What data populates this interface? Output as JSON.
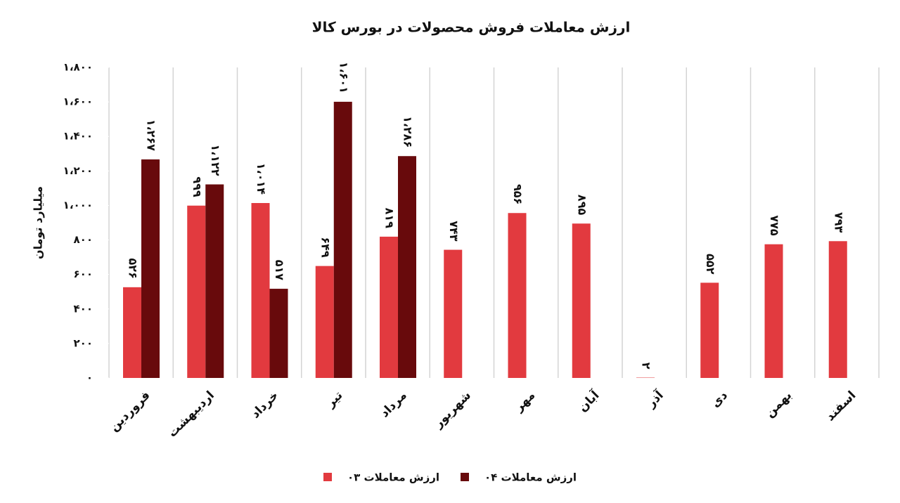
{
  "chart_data": {
    "type": "bar",
    "title": "ارزش معاملات فروش محصولات در بورس کالا",
    "y_label": "میلیارد تومان",
    "categories": [
      "فروردین",
      "اردیبهشت",
      "خرداد",
      "تیر",
      "مرداد",
      "شهریور",
      "مهر",
      "آبان",
      "آذر",
      "دی",
      "بهمن",
      "اسفند"
    ],
    "series": [
      {
        "name": "ارزش معاملات ۰۳",
        "color": "#e23a3f",
        "values": [
          526,
          999,
          1014,
          649,
          819,
          743,
          956,
          895,
          2,
          552,
          775,
          793
        ],
        "value_labels": [
          "۵۲۶",
          "۹۹۹",
          "۱،۰۱۴",
          "۶۴۹",
          "۸۱۹",
          "۷۴۳",
          "۹۵۶",
          "۸۹۵",
          "۲",
          "۵۵۲",
          "۷۷۵",
          "۷۹۳"
        ]
      },
      {
        "name": "ارزش معاملات ۰۴",
        "color": "#680a0c",
        "values": [
          1267,
          1122,
          517,
          1601,
          1286,
          null,
          null,
          null,
          null,
          null,
          null,
          null
        ],
        "value_labels": [
          "۱،۲۶۷",
          "۱،۱۲۲",
          "۵۱۷",
          "۱،۶۰۱",
          "۱،۲۸۶",
          null,
          null,
          null,
          null,
          null,
          null,
          null
        ]
      }
    ],
    "ylim": [
      0,
      1800
    ],
    "yticks": [
      {
        "value": 0,
        "label": "۰"
      },
      {
        "value": 200,
        "label": "۲۰۰"
      },
      {
        "value": 400,
        "label": "۴۰۰"
      },
      {
        "value": 600,
        "label": "۶۰۰"
      },
      {
        "value": 800,
        "label": "۸۰۰"
      },
      {
        "value": 1000,
        "label": "۱،۰۰۰"
      },
      {
        "value": 1200,
        "label": "۱،۲۰۰"
      },
      {
        "value": 1400,
        "label": "۱،۴۰۰"
      },
      {
        "value": 1600,
        "label": "۱،۶۰۰"
      },
      {
        "value": 1800,
        "label": "۱،۸۰۰"
      }
    ],
    "legend": "bottom"
  }
}
